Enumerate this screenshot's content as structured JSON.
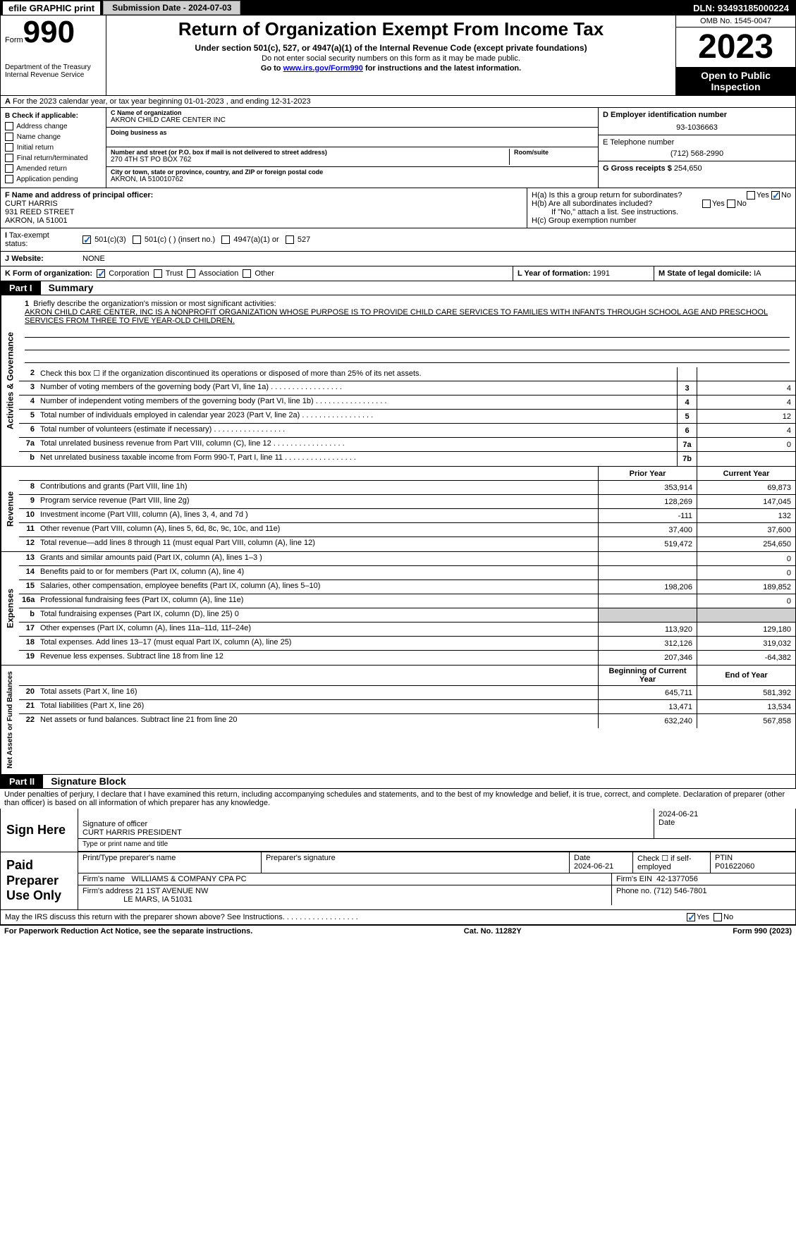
{
  "top": {
    "efile": "efile GRAPHIC print",
    "submission": "Submission Date - 2024-07-03",
    "dln": "DLN: 93493185000224"
  },
  "header": {
    "form": "Form",
    "num": "990",
    "dept": "Department of the Treasury",
    "irs": "Internal Revenue Service",
    "title": "Return of Organization Exempt From Income Tax",
    "sub": "Under section 501(c), 527, or 4947(a)(1) of the Internal Revenue Code (except private foundations)",
    "ssn": "Do not enter social security numbers on this form as it may be made public.",
    "goto": "Go to www.irs.gov/Form990 for instructions and the latest information.",
    "omb": "OMB No. 1545-0047",
    "year": "2023",
    "inspect": "Open to Public Inspection"
  },
  "A": "For the 2023 calendar year, or tax year beginning 01-01-2023   , and ending 12-31-2023",
  "B": {
    "label": "B Check if applicable:",
    "items": [
      "Address change",
      "Name change",
      "Initial return",
      "Final return/terminated",
      "Amended return",
      "Application pending"
    ]
  },
  "C": {
    "name_label": "C Name of organization",
    "name": "AKRON CHILD CARE CENTER INC",
    "dba_label": "Doing business as",
    "street_label": "Number and street (or P.O. box if mail is not delivered to street address)",
    "street": "270 4TH ST PO BOX 762",
    "room_label": "Room/suite",
    "city_label": "City or town, state or province, country, and ZIP or foreign postal code",
    "city": "AKRON, IA  510010762"
  },
  "D": {
    "label": "D Employer identification number",
    "val": "93-1036663"
  },
  "E": {
    "label": "E Telephone number",
    "val": "(712) 568-2990"
  },
  "G": {
    "label": "G Gross receipts $",
    "val": "254,650"
  },
  "F": {
    "label": "F  Name and address of principal officer:",
    "name": "CURT HARRIS",
    "street": "931 REED STREET",
    "city": "AKRON, IA  51001"
  },
  "H": {
    "a": "H(a)  Is this a group return for subordinates?",
    "b": "H(b)  Are all subordinates included?",
    "note": "If \"No,\" attach a list. See instructions.",
    "c": "H(c)  Group exemption number"
  },
  "I": {
    "label": "Tax-exempt status:",
    "opts": [
      "501(c)(3)",
      "501(c) (  ) (insert no.)",
      "4947(a)(1) or",
      "527"
    ]
  },
  "J": {
    "label": "Website:",
    "val": "NONE"
  },
  "K": {
    "label": "K Form of organization:",
    "opts": [
      "Corporation",
      "Trust",
      "Association",
      "Other"
    ]
  },
  "L": {
    "label": "L Year of formation:",
    "val": "1991"
  },
  "M": {
    "label": "M State of legal domicile:",
    "val": "IA"
  },
  "partI": {
    "num": "Part I",
    "title": "Summary"
  },
  "mission": {
    "label": "Briefly describe the organization's mission or most significant activities:",
    "text": "AKRON CHILD CARE CENTER, INC IS A NONPROFIT ORGANIZATION WHOSE PURPOSE IS TO PROVIDE CHILD CARE SERVICES TO FAMILIES WITH INFANTS THROUGH SCHOOL AGE AND PRESCHOOL SERVICES FROM THREE TO FIVE YEAR-OLD CHILDREN."
  },
  "lines_ag": [
    {
      "n": "2",
      "t": "Check this box ☐ if the organization discontinued its operations or disposed of more than 25% of its net assets."
    },
    {
      "n": "3",
      "t": "Number of voting members of the governing body (Part VI, line 1a)",
      "box": "3",
      "v": "4"
    },
    {
      "n": "4",
      "t": "Number of independent voting members of the governing body (Part VI, line 1b)",
      "box": "4",
      "v": "4"
    },
    {
      "n": "5",
      "t": "Total number of individuals employed in calendar year 2023 (Part V, line 2a)",
      "box": "5",
      "v": "12"
    },
    {
      "n": "6",
      "t": "Total number of volunteers (estimate if necessary)",
      "box": "6",
      "v": "4"
    },
    {
      "n": "7a",
      "t": "Total unrelated business revenue from Part VIII, column (C), line 12",
      "box": "7a",
      "v": "0"
    },
    {
      "n": "b",
      "t": "Net unrelated business taxable income from Form 990-T, Part I, line 11",
      "box": "7b",
      "v": ""
    }
  ],
  "vert": {
    "ag": "Activities & Governance",
    "rev": "Revenue",
    "exp": "Expenses",
    "na": "Net Assets or Fund Balances"
  },
  "cols": {
    "prior": "Prior Year",
    "curr": "Current Year",
    "beg": "Beginning of Current Year",
    "end": "End of Year"
  },
  "revenue": [
    {
      "n": "8",
      "t": "Contributions and grants (Part VIII, line 1h)",
      "p": "353,914",
      "c": "69,873"
    },
    {
      "n": "9",
      "t": "Program service revenue (Part VIII, line 2g)",
      "p": "128,269",
      "c": "147,045"
    },
    {
      "n": "10",
      "t": "Investment income (Part VIII, column (A), lines 3, 4, and 7d )",
      "p": "-111",
      "c": "132"
    },
    {
      "n": "11",
      "t": "Other revenue (Part VIII, column (A), lines 5, 6d, 8c, 9c, 10c, and 11e)",
      "p": "37,400",
      "c": "37,600"
    },
    {
      "n": "12",
      "t": "Total revenue—add lines 8 through 11 (must equal Part VIII, column (A), line 12)",
      "p": "519,472",
      "c": "254,650"
    }
  ],
  "expenses": [
    {
      "n": "13",
      "t": "Grants and similar amounts paid (Part IX, column (A), lines 1–3 )",
      "p": "",
      "c": "0"
    },
    {
      "n": "14",
      "t": "Benefits paid to or for members (Part IX, column (A), line 4)",
      "p": "",
      "c": "0"
    },
    {
      "n": "15",
      "t": "Salaries, other compensation, employee benefits (Part IX, column (A), lines 5–10)",
      "p": "198,206",
      "c": "189,852"
    },
    {
      "n": "16a",
      "t": "Professional fundraising fees (Part IX, column (A), line 11e)",
      "p": "",
      "c": "0"
    },
    {
      "n": "b",
      "t": "Total fundraising expenses (Part IX, column (D), line 25) 0",
      "grey": true
    },
    {
      "n": "17",
      "t": "Other expenses (Part IX, column (A), lines 11a–11d, 11f–24e)",
      "p": "113,920",
      "c": "129,180"
    },
    {
      "n": "18",
      "t": "Total expenses. Add lines 13–17 (must equal Part IX, column (A), line 25)",
      "p": "312,126",
      "c": "319,032"
    },
    {
      "n": "19",
      "t": "Revenue less expenses. Subtract line 18 from line 12",
      "p": "207,346",
      "c": "-64,382"
    }
  ],
  "netassets": [
    {
      "n": "20",
      "t": "Total assets (Part X, line 16)",
      "p": "645,711",
      "c": "581,392"
    },
    {
      "n": "21",
      "t": "Total liabilities (Part X, line 26)",
      "p": "13,471",
      "c": "13,534"
    },
    {
      "n": "22",
      "t": "Net assets or fund balances. Subtract line 21 from line 20",
      "p": "632,240",
      "c": "567,858"
    }
  ],
  "partII": {
    "num": "Part II",
    "title": "Signature Block"
  },
  "perjury": "Under penalties of perjury, I declare that I have examined this return, including accompanying schedules and statements, and to the best of my knowledge and belief, it is true, correct, and complete. Declaration of preparer (other than officer) is based on all information of which preparer has any knowledge.",
  "sign": {
    "here": "Sign Here",
    "sig_label": "Signature of officer",
    "officer": "CURT HARRIS  PRESIDENT",
    "type_label": "Type or print name and title",
    "date": "2024-06-21",
    "date_label": "Date"
  },
  "paid": {
    "label": "Paid Preparer Use Only",
    "prep_name_label": "Print/Type preparer's name",
    "prep_sig_label": "Preparer's signature",
    "date": "2024-06-21",
    "self": "Check ☐ if self-employed",
    "ptin_label": "PTIN",
    "ptin": "P01622060",
    "firm_label": "Firm's name",
    "firm": "WILLIAMS & COMPANY CPA PC",
    "ein_label": "Firm's EIN",
    "ein": "42-1377056",
    "addr_label": "Firm's address",
    "addr1": "21 1ST AVENUE NW",
    "addr2": "LE MARS, IA  51031",
    "phone_label": "Phone no.",
    "phone": "(712) 546-7801"
  },
  "discuss": "May the IRS discuss this return with the preparer shown above? See Instructions.",
  "footer": {
    "l": "For Paperwork Reduction Act Notice, see the separate instructions.",
    "m": "Cat. No. 11282Y",
    "r": "Form 990 (2023)"
  }
}
